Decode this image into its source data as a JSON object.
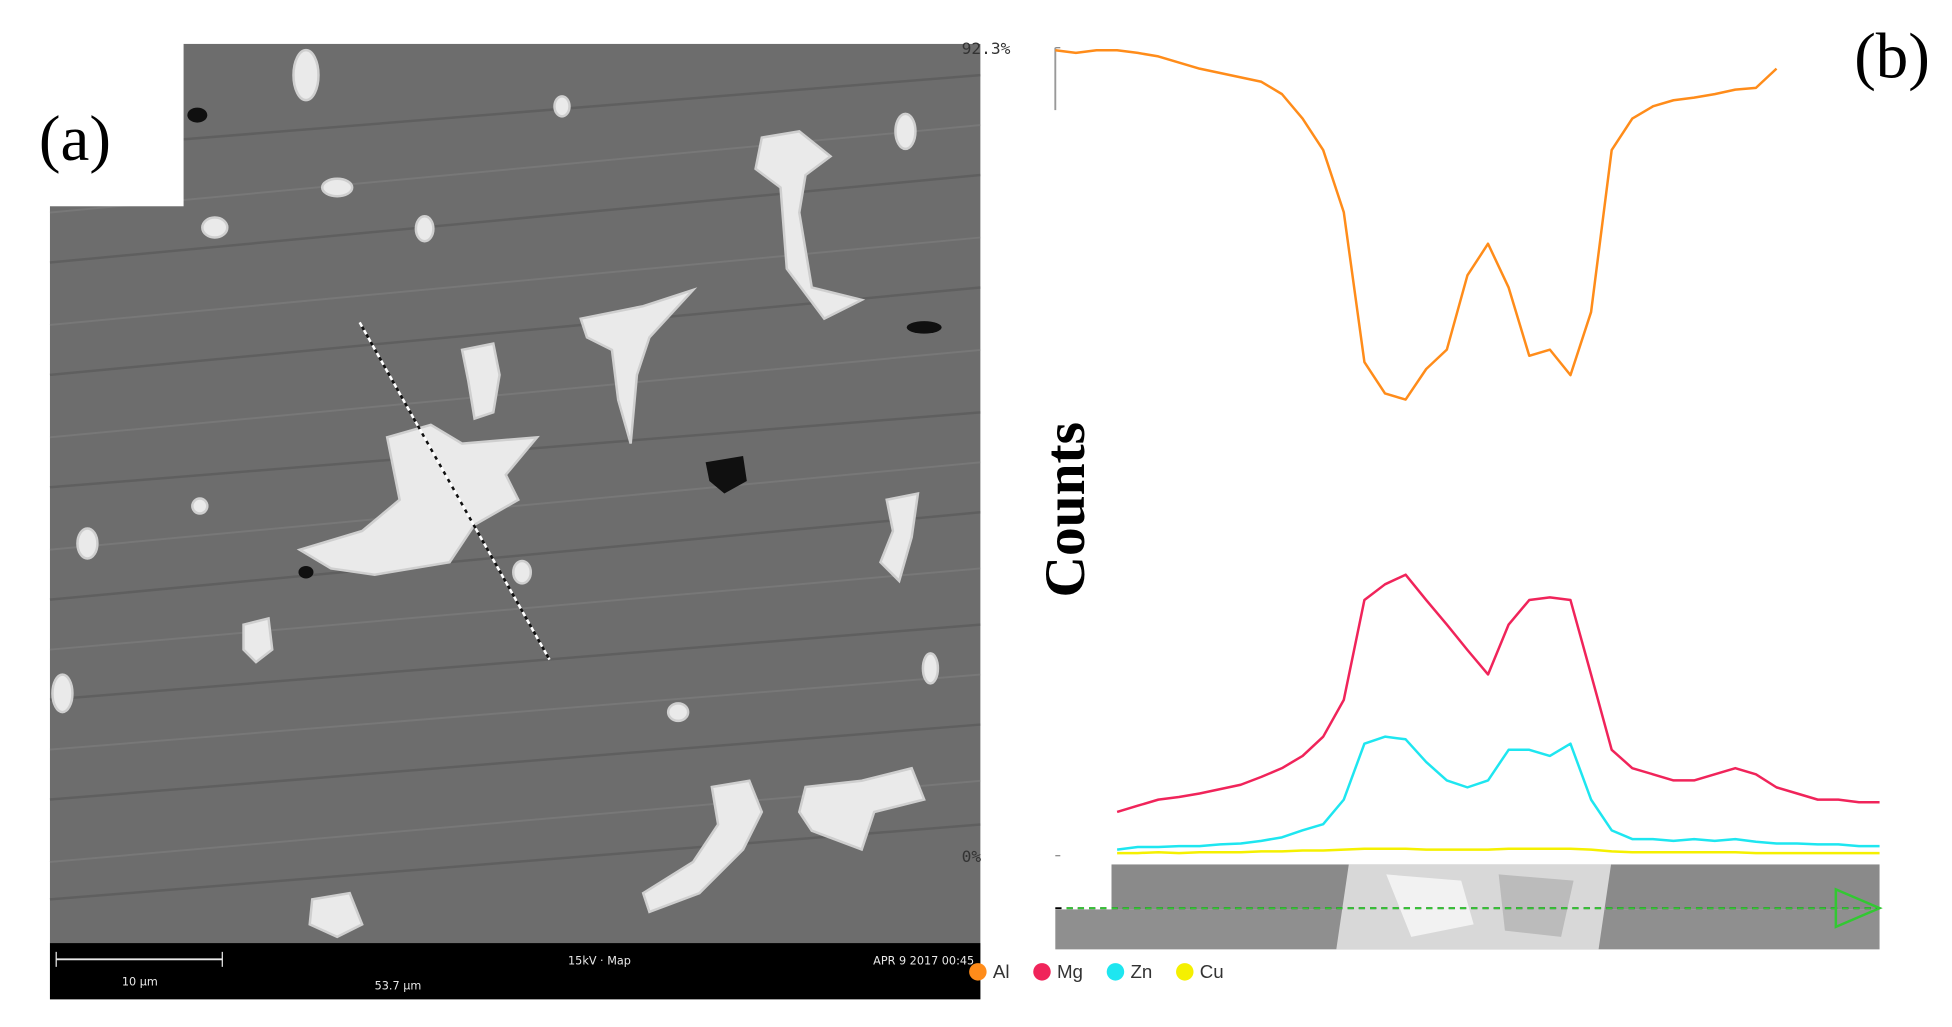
{
  "panel_a": {
    "label": "(a)",
    "scale_bar": "10 µm",
    "info": "15kV · Map",
    "date": "APR 9 2017 00:45",
    "field_width": "53.7 µm"
  },
  "chart_data": {
    "type": "line",
    "label": "(b)",
    "y_label": "Counts",
    "ylim": [
      0,
      92.3
    ],
    "yticks": [
      {
        "value": 92.3,
        "label": "92.3%"
      },
      {
        "value": 0,
        "label": "0%"
      }
    ],
    "legend": "bottom-left",
    "series": [
      {
        "name": "Al",
        "color": "#ff8c1a",
        "values": [
          92.0,
          91.7,
          92.0,
          92.0,
          91.7,
          91.3,
          90.6,
          89.9,
          89.4,
          88.9,
          88.4,
          87.0,
          84.2,
          80.6,
          73.5,
          56.4,
          52.8,
          52.1,
          55.6,
          57.8,
          66.3,
          69.9,
          64.9,
          57.1,
          57.8,
          54.9,
          62.1,
          80.6,
          84.2,
          85.6,
          86.3,
          86.6,
          87.0,
          87.5,
          87.7,
          89.9,
          null,
          null,
          null,
          null,
          null
        ]
      },
      {
        "name": "Mg",
        "color": "#f0245a",
        "values": [
          null,
          null,
          null,
          5.0,
          5.7,
          6.4,
          6.7,
          7.1,
          7.6,
          8.1,
          9.0,
          10.0,
          11.4,
          13.6,
          17.8,
          29.2,
          31.0,
          32.1,
          29.2,
          26.4,
          23.5,
          20.7,
          26.4,
          29.2,
          29.5,
          29.2,
          20.7,
          12.1,
          10.0,
          9.3,
          8.6,
          8.6,
          9.3,
          10.0,
          9.3,
          7.8,
          7.1,
          6.4,
          6.4,
          6.1,
          6.1
        ]
      },
      {
        "name": "Zn",
        "color": "#1ee6f0",
        "values": [
          null,
          null,
          null,
          0.7,
          1.0,
          1.0,
          1.1,
          1.1,
          1.3,
          1.4,
          1.7,
          2.1,
          2.9,
          3.6,
          6.4,
          12.8,
          13.6,
          13.3,
          10.7,
          8.6,
          7.8,
          8.6,
          12.1,
          12.1,
          11.4,
          12.8,
          6.4,
          2.9,
          1.9,
          1.9,
          1.7,
          1.9,
          1.7,
          1.9,
          1.6,
          1.4,
          1.4,
          1.3,
          1.3,
          1.1,
          1.1
        ]
      },
      {
        "name": "Cu",
        "color": "#f5f000",
        "values": [
          null,
          null,
          null,
          0.3,
          0.3,
          0.4,
          0.3,
          0.4,
          0.4,
          0.4,
          0.5,
          0.5,
          0.6,
          0.6,
          0.7,
          0.8,
          0.8,
          0.8,
          0.7,
          0.7,
          0.7,
          0.7,
          0.8,
          0.8,
          0.8,
          0.8,
          0.7,
          0.5,
          0.4,
          0.4,
          0.4,
          0.4,
          0.4,
          0.4,
          0.3,
          0.3,
          0.3,
          0.3,
          0.3,
          0.3,
          0.3
        ]
      }
    ]
  }
}
